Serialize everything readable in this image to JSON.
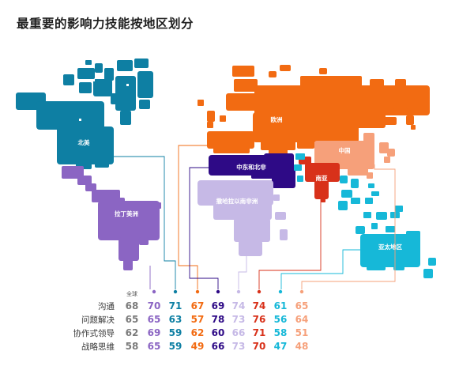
{
  "title": "最重要的影响力技能按地区划分",
  "chart_data": {
    "type": "table",
    "title": "最重要的影响力技能按地区划分",
    "columns": [
      {
        "key": "global",
        "label": "全球",
        "color": "#7a7a7a"
      },
      {
        "key": "latam",
        "label": "拉丁美洲",
        "color": "#8b65c3"
      },
      {
        "key": "north_america",
        "label": "北美",
        "color": "#0e7fa3"
      },
      {
        "key": "europe",
        "label": "欧洲",
        "color": "#f26b12"
      },
      {
        "key": "mena",
        "label": "中东和北非",
        "color": "#2e0a86"
      },
      {
        "key": "ssa",
        "label": "撒哈拉以南非洲",
        "color": "#c6b9e6"
      },
      {
        "key": "south_asia",
        "label": "南亚",
        "color": "#d8311a"
      },
      {
        "key": "apac",
        "label": "亚太地区",
        "color": "#16b8d8"
      },
      {
        "key": "china",
        "label": "中国",
        "color": "#f6a07a"
      }
    ],
    "rows": [
      {
        "label": "沟通",
        "values": [
          68,
          70,
          71,
          67,
          69,
          74,
          74,
          61,
          65
        ]
      },
      {
        "label": "问题解决",
        "values": [
          65,
          65,
          63,
          57,
          78,
          73,
          76,
          56,
          64
        ]
      },
      {
        "label": "协作式领导",
        "values": [
          62,
          69,
          59,
          62,
          60,
          66,
          71,
          58,
          51
        ]
      },
      {
        "label": "战略思维",
        "values": [
          58,
          65,
          59,
          49,
          66,
          73,
          70,
          47,
          48
        ]
      }
    ]
  }
}
